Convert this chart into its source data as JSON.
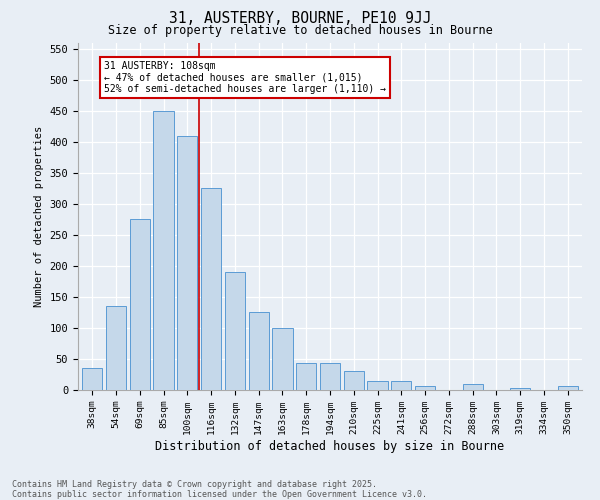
{
  "title1": "31, AUSTERBY, BOURNE, PE10 9JJ",
  "title2": "Size of property relative to detached houses in Bourne",
  "xlabel": "Distribution of detached houses by size in Bourne",
  "ylabel": "Number of detached properties",
  "categories": [
    "38sqm",
    "54sqm",
    "69sqm",
    "85sqm",
    "100sqm",
    "116sqm",
    "132sqm",
    "147sqm",
    "163sqm",
    "178sqm",
    "194sqm",
    "210sqm",
    "225sqm",
    "241sqm",
    "256sqm",
    "272sqm",
    "288sqm",
    "303sqm",
    "319sqm",
    "334sqm",
    "350sqm"
  ],
  "values": [
    35,
    135,
    275,
    450,
    410,
    325,
    190,
    125,
    100,
    43,
    43,
    30,
    15,
    15,
    7,
    0,
    9,
    0,
    4,
    0,
    6
  ],
  "bar_color": "#c5d8ea",
  "bar_edge_color": "#5b9bd5",
  "vline_color": "#cc0000",
  "vline_x": 4.5,
  "annotation_line1": "31 AUSTERBY: 108sqm",
  "annotation_line2": "← 47% of detached houses are smaller (1,015)",
  "annotation_line3": "52% of semi-detached houses are larger (1,110) →",
  "annotation_box_color": "#ffffff",
  "annotation_box_edge": "#cc0000",
  "ylim": [
    0,
    560
  ],
  "yticks": [
    0,
    50,
    100,
    150,
    200,
    250,
    300,
    350,
    400,
    450,
    500,
    550
  ],
  "bg_color": "#e8eef5",
  "footnote": "Contains HM Land Registry data © Crown copyright and database right 2025.\nContains public sector information licensed under the Open Government Licence v3.0."
}
